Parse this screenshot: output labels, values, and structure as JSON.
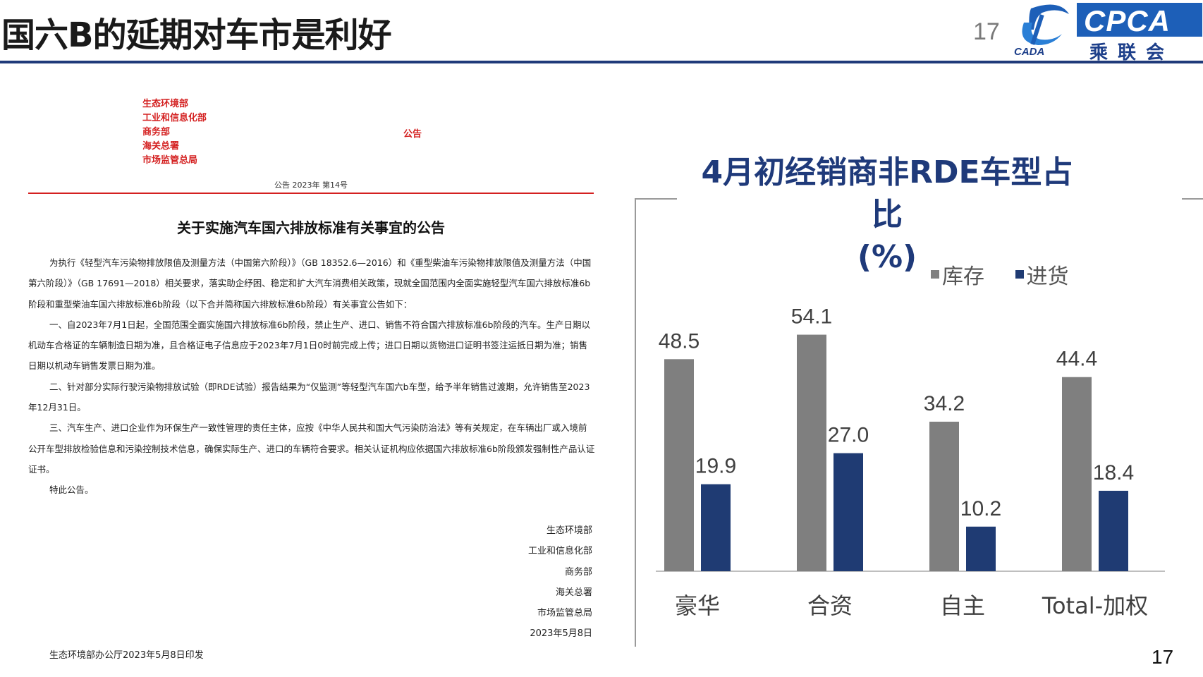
{
  "header": {
    "title": "国六B的延期对车市是利好",
    "page_number": "17",
    "logo_left_text": "CADA",
    "logo_right_text": "CPCA",
    "logo_right_sub": "乘联会"
  },
  "document": {
    "ministries": [
      "生态环境部",
      "工业和信息化部",
      "商务部",
      "海关总署",
      "市场监管总局"
    ],
    "announcement_tag": "公告",
    "doc_number": "公告 2023年 第14号",
    "title": "关于实施汽车国六排放标准有关事宜的公告",
    "paragraphs": [
      "为执行《轻型汽车污染物排放限值及测量方法（中国第六阶段）》（GB 18352.6—2016）和《重型柴油车污染物排放限值及测量方法（中国第六阶段）》（GB 17691—2018）相关要求，落实助企纾困、稳定和扩大汽车消费相关政策，现就全国范围内全面实施轻型汽车国六排放标准6b阶段和重型柴油车国六排放标准6b阶段（以下合并简称国六排放标准6b阶段）有关事宜公告如下：",
      "一、自2023年7月1日起，全国范围全面实施国六排放标准6b阶段，禁止生产、进口、销售不符合国六排放标准6b阶段的汽车。生产日期以机动车合格证的车辆制造日期为准，且合格证电子信息应于2023年7月1日0时前完成上传；进口日期以货物进口证明书签注运抵日期为准；销售日期以机动车销售发票日期为准。",
      "二、针对部分实际行驶污染物排放试验（即RDE试验）报告结果为“仅监测”等轻型汽车国六b车型，给予半年销售过渡期，允许销售至2023年12月31日。",
      "三、汽车生产、进口企业作为环保生产一致性管理的责任主体，应按《中华人民共和国大气污染防治法》等有关规定，在车辆出厂或入境前公开车型排放检验信息和污染控制技术信息，确保实际生产、进口的车辆符合要求。相关认证机构应依据国六排放标准6b阶段颁发强制性产品认证证书。",
      "特此公告。"
    ],
    "signers": [
      "生态环境部",
      "工业和信息化部",
      "商务部",
      "海关总署",
      "市场监管总局",
      "2023年5月8日"
    ],
    "footer": "生态环境部办公厅2023年5月8日印发"
  },
  "chart_data": {
    "type": "bar",
    "title": "4月初经销商非RDE车型占比",
    "title_unit": "(%)",
    "categories": [
      "豪华",
      "合资",
      "自主",
      "Total-加权"
    ],
    "series": [
      {
        "name": "库存",
        "values": [
          48.5,
          54.1,
          34.2,
          44.4
        ],
        "color": "#7f7f7f"
      },
      {
        "name": "进货",
        "values": [
          19.9,
          27.0,
          10.2,
          18.4
        ],
        "color": "#1f3b73"
      }
    ],
    "value_labels": [
      [
        "48.5",
        "54.1",
        "34.2",
        "44.4"
      ],
      [
        "19.9",
        "27.0",
        "10.2",
        "18.4"
      ]
    ],
    "ylim": [
      0,
      60
    ],
    "legend_position": "top-right",
    "grid": false
  },
  "page_number_bottom": "17"
}
